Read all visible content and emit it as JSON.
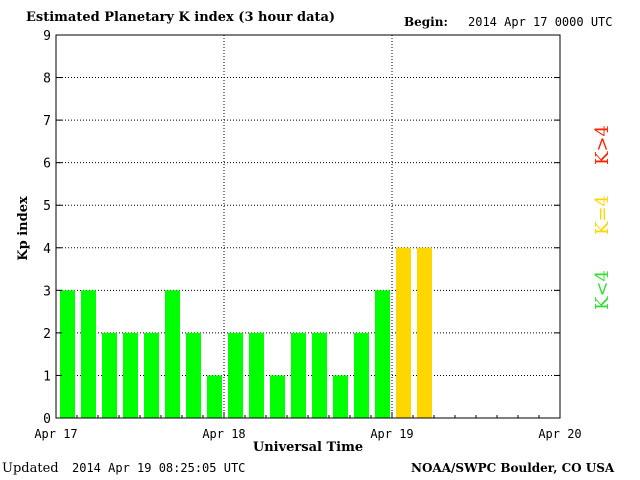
{
  "header": {
    "title": "Estimated Planetary K index (3 hour data)",
    "begin_label": "Begin:",
    "begin_value": "2014 Apr 17 0000 UTC"
  },
  "footer": {
    "updated_label": "Updated",
    "updated_value": "2014 Apr 19 08:25:05 UTC",
    "org": "NOAA/SWPC Boulder, CO USA"
  },
  "colors": {
    "below": "#00ff00",
    "equal": "#ffd700",
    "above": "#ff2200"
  },
  "legend": [
    {
      "label": "K>4",
      "color": "#ff2200"
    },
    {
      "label": "K=4",
      "color": "#ffd700"
    },
    {
      "label": "K<4",
      "color": "#33dd33"
    }
  ],
  "chart_data": {
    "type": "bar",
    "xlabel": "Universal Time",
    "ylabel": "Kp index",
    "ylim": [
      0,
      9
    ],
    "yticks": [
      0,
      1,
      2,
      3,
      4,
      5,
      6,
      7,
      8,
      9
    ],
    "xlim_hours": [
      0,
      72
    ],
    "xticks": [
      {
        "hour": 0,
        "label": "Apr 17"
      },
      {
        "hour": 24,
        "label": "Apr 18"
      },
      {
        "hour": 48,
        "label": "Apr 19"
      },
      {
        "hour": 72,
        "label": "Apr 20"
      }
    ],
    "grid": true,
    "interval_hours": 3,
    "values": [
      3,
      3,
      2,
      2,
      2,
      3,
      2,
      1,
      2,
      2,
      1,
      2,
      2,
      1,
      2,
      3,
      4,
      4
    ]
  }
}
